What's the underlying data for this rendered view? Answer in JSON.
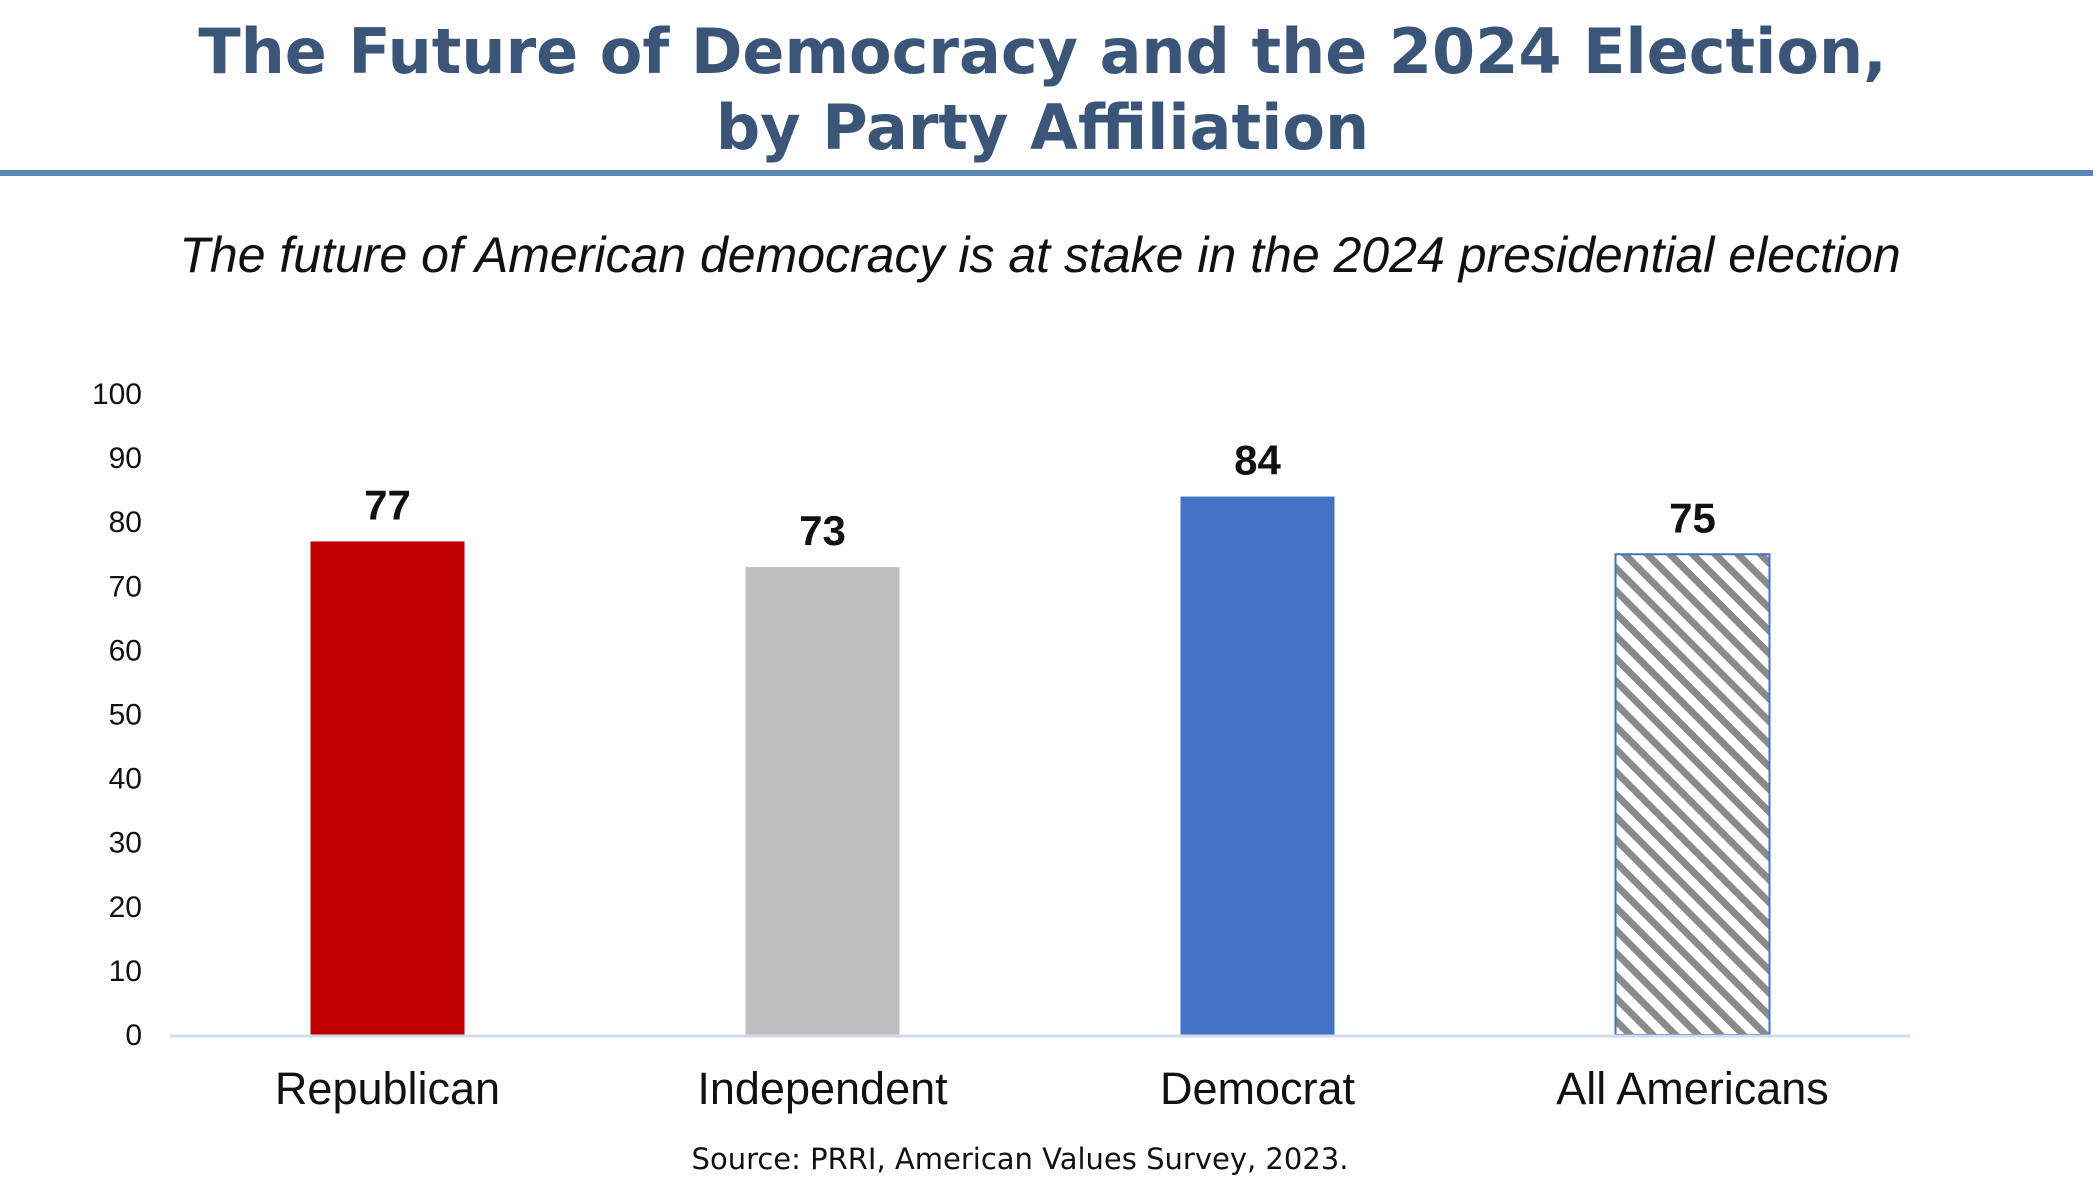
{
  "header": {
    "title_line1": "The Future of Democracy and the 2024 Election,",
    "title_line2": "by Party Affiliation"
  },
  "footer": {
    "source": "Source: PRRI, American Values Survey, 2023."
  },
  "chart_data": {
    "type": "bar",
    "title": "The Future of Democracy and the 2024 Election, by Party Affiliation",
    "subtitle": "The future of American democracy is at stake in the 2024 presidential election",
    "categories": [
      "Republican",
      "Independent",
      "Democrat",
      "All Americans"
    ],
    "values": [
      77,
      73,
      84,
      75
    ],
    "value_labels": [
      "77",
      "73",
      "84",
      "75"
    ],
    "bar_colors": [
      "#c00000",
      "#bfbfbf",
      "#4472c4",
      "hatched-gray"
    ],
    "hatch_color": "#8a8a8a",
    "hatch_border_color": "#4472c4",
    "xlabel": "",
    "ylabel": "",
    "ylim": [
      0,
      100
    ],
    "yticks": [
      0,
      10,
      20,
      30,
      40,
      50,
      60,
      70,
      80,
      90,
      100
    ],
    "ytick_labels": [
      "0",
      "10",
      "20",
      "30",
      "40",
      "50",
      "60",
      "70",
      "80",
      "90",
      "100"
    ],
    "grid": false,
    "legend": "none",
    "axis_color": "#d0dcec"
  }
}
